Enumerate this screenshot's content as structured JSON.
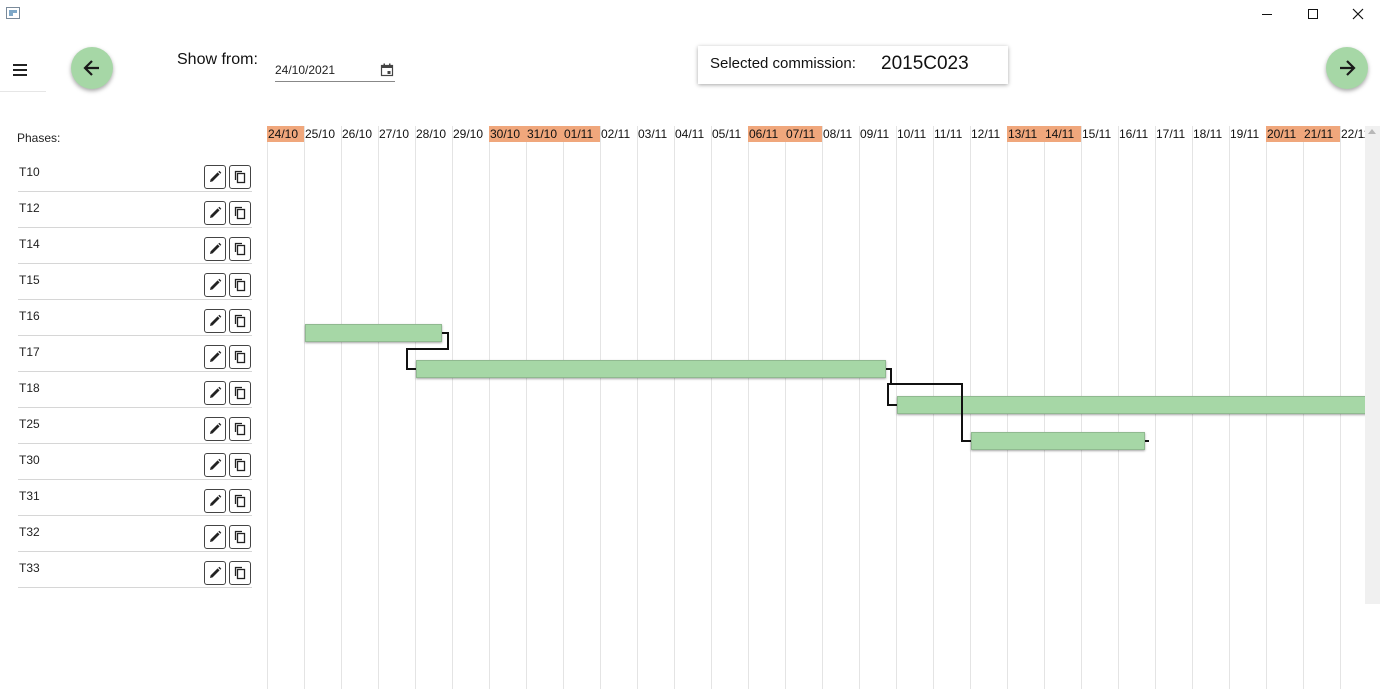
{
  "window": {
    "icons": {
      "app": "app-window-icon",
      "minimize": "minimize-icon",
      "maximize": "maximize-icon",
      "close": "close-icon"
    }
  },
  "toolbar": {
    "menu_icon": "hamburger-menu-icon",
    "prev_icon": "arrow-left-icon",
    "next_icon": "arrow-right-icon",
    "show_from_label": "Show from:",
    "date_value": "24/10/2021",
    "calendar_icon": "calendar-icon",
    "commission_label": "Selected commission:",
    "commission_value": "2015C023",
    "accent_color": "#a6d7a6"
  },
  "phases": {
    "header": "Phases:",
    "edit_icon": "pencil-icon",
    "copy_icon": "copy-icon",
    "items": [
      {
        "name": "T10"
      },
      {
        "name": "T12"
      },
      {
        "name": "T14"
      },
      {
        "name": "T15"
      },
      {
        "name": "T16"
      },
      {
        "name": "T17"
      },
      {
        "name": "T18"
      },
      {
        "name": "T25"
      },
      {
        "name": "T30"
      },
      {
        "name": "T31"
      },
      {
        "name": "T32"
      },
      {
        "name": "T33"
      }
    ]
  },
  "timeline": {
    "weekend_color": "#f0a77c",
    "bar_color": "#a6d7a6",
    "days": [
      {
        "label": "24/10",
        "weekend": true
      },
      {
        "label": "25/10",
        "weekend": false
      },
      {
        "label": "26/10",
        "weekend": false
      },
      {
        "label": "27/10",
        "weekend": false
      },
      {
        "label": "28/10",
        "weekend": false
      },
      {
        "label": "29/10",
        "weekend": false
      },
      {
        "label": "30/10",
        "weekend": true
      },
      {
        "label": "31/10",
        "weekend": true
      },
      {
        "label": "01/11",
        "weekend": true
      },
      {
        "label": "02/11",
        "weekend": false
      },
      {
        "label": "03/11",
        "weekend": false
      },
      {
        "label": "04/11",
        "weekend": false
      },
      {
        "label": "05/11",
        "weekend": false
      },
      {
        "label": "06/11",
        "weekend": true
      },
      {
        "label": "07/11",
        "weekend": true
      },
      {
        "label": "08/11",
        "weekend": false
      },
      {
        "label": "09/11",
        "weekend": false
      },
      {
        "label": "10/11",
        "weekend": false
      },
      {
        "label": "11/11",
        "weekend": false
      },
      {
        "label": "12/11",
        "weekend": false
      },
      {
        "label": "13/11",
        "weekend": true
      },
      {
        "label": "14/11",
        "weekend": true
      },
      {
        "label": "15/11",
        "weekend": false
      },
      {
        "label": "16/11",
        "weekend": false
      },
      {
        "label": "17/11",
        "weekend": false
      },
      {
        "label": "18/11",
        "weekend": false
      },
      {
        "label": "19/11",
        "weekend": false
      },
      {
        "label": "20/11",
        "weekend": true
      },
      {
        "label": "21/11",
        "weekend": true
      },
      {
        "label": "22/11",
        "weekend": false
      }
    ],
    "tasks": [
      {
        "phase": "T30",
        "start": "25/10",
        "end": "28/10"
      },
      {
        "phase": "T31",
        "start": "28/10",
        "end": "09/11"
      },
      {
        "phase": "T32",
        "start": "10/11",
        "end": "22/11"
      },
      {
        "phase": "T33",
        "start": "12/11",
        "end": "16/11"
      }
    ],
    "dependencies": [
      {
        "from": "T30",
        "to": "T31"
      },
      {
        "from": "T31",
        "to": "T32"
      },
      {
        "from": "T31",
        "to": "T33"
      }
    ]
  }
}
